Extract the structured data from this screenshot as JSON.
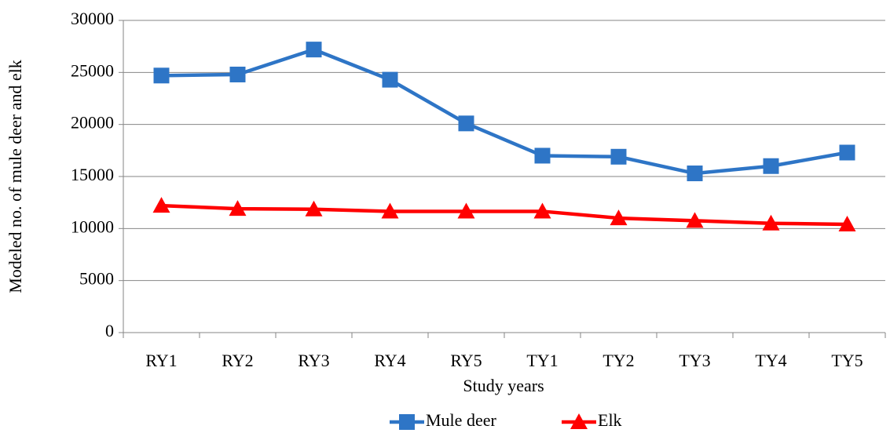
{
  "chart_data": {
    "type": "line",
    "x_label": "Study years",
    "y_label": "Modeled no. of mule deer and elk",
    "categories": [
      "RY1",
      "RY2",
      "RY3",
      "RY4",
      "RY5",
      "TY1",
      "TY2",
      "TY3",
      "TY4",
      "TY5"
    ],
    "series": [
      {
        "name": "Mule deer",
        "color": "#2e75c6",
        "marker": "square",
        "values": [
          24700,
          24800,
          27200,
          24300,
          20100,
          17000,
          16900,
          15300,
          16000,
          17300
        ]
      },
      {
        "name": "Elk",
        "color": "#ff0000",
        "marker": "triangle",
        "values": [
          12200,
          11900,
          11850,
          11650,
          11650,
          11650,
          11000,
          10750,
          10500,
          10400
        ]
      }
    ],
    "ylim": [
      0,
      30000
    ],
    "yticks": [
      0,
      5000,
      10000,
      15000,
      20000,
      25000,
      30000
    ],
    "grid": true,
    "legend": "bottom"
  }
}
